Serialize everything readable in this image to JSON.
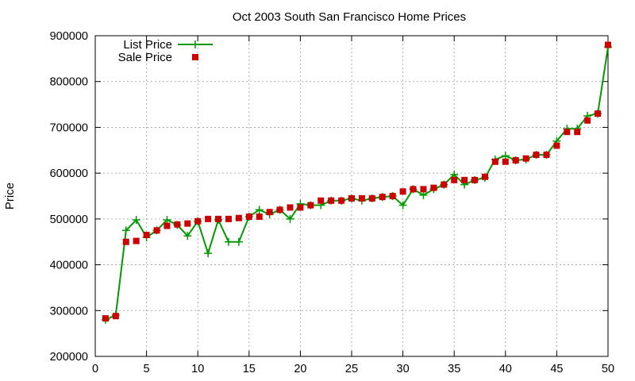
{
  "chart_data": {
    "type": "line",
    "title": "Oct 2003 South San Francisco Home Prices",
    "xlabel": "",
    "ylabel": "Price",
    "xlim": [
      0,
      50
    ],
    "ylim": [
      200000,
      900000
    ],
    "x_ticks": [
      "0",
      "5",
      "10",
      "15",
      "20",
      "25",
      "30",
      "35",
      "40",
      "45",
      "50"
    ],
    "y_ticks": [
      "200000",
      "300000",
      "400000",
      "500000",
      "600000",
      "700000",
      "800000",
      "900000"
    ],
    "grid": true,
    "legend_position": "top-left",
    "x": [
      1,
      2,
      3,
      4,
      5,
      6,
      7,
      8,
      9,
      10,
      11,
      12,
      13,
      14,
      15,
      16,
      17,
      18,
      19,
      20,
      21,
      22,
      23,
      24,
      25,
      26,
      27,
      28,
      29,
      30,
      31,
      32,
      33,
      34,
      35,
      36,
      37,
      38,
      39,
      40,
      41,
      42,
      43,
      44,
      45,
      46,
      47,
      48,
      49,
      50
    ],
    "series": [
      {
        "name": "List Price",
        "style": "line-points",
        "marker": "plus",
        "color": "#009900",
        "values": [
          280000,
          290000,
          475000,
          498000,
          460000,
          475000,
          498000,
          487000,
          463000,
          495000,
          425000,
          498000,
          450000,
          450000,
          505000,
          520000,
          510000,
          520000,
          500000,
          533000,
          530000,
          530000,
          540000,
          540000,
          545000,
          540000,
          545000,
          548000,
          550000,
          530000,
          565000,
          552000,
          565000,
          575000,
          597000,
          575000,
          585000,
          590000,
          630000,
          638000,
          628000,
          630000,
          640000,
          640000,
          670000,
          697000,
          697000,
          725000,
          730000,
          875000
        ]
      },
      {
        "name": "Sale Price",
        "style": "points",
        "marker": "square",
        "color": "#cc0000",
        "values": [
          283000,
          288000,
          450000,
          452000,
          465000,
          475000,
          485000,
          488000,
          490000,
          495000,
          500000,
          500000,
          500000,
          502000,
          505000,
          505000,
          515000,
          520000,
          525000,
          525000,
          530000,
          540000,
          540000,
          540000,
          545000,
          545000,
          545000,
          548000,
          550000,
          560000,
          565000,
          565000,
          568000,
          575000,
          585000,
          585000,
          585000,
          592000,
          625000,
          625000,
          628000,
          632000,
          640000,
          640000,
          660000,
          690000,
          690000,
          715000,
          730000,
          880000
        ]
      }
    ]
  }
}
